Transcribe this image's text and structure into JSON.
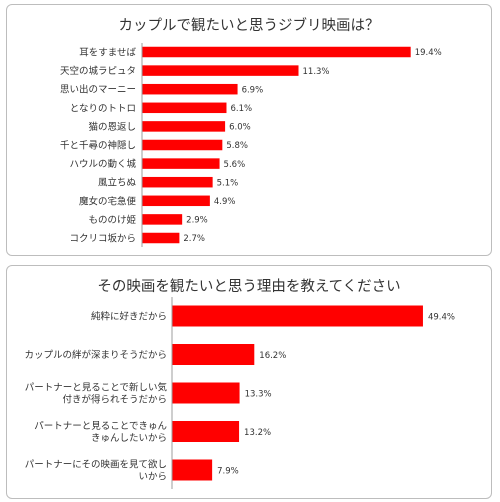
{
  "chart_data": [
    {
      "type": "bar",
      "orientation": "horizontal",
      "title": "カップルで観たいと思うジブリ映画は？",
      "categories": [
        "耳をすませば",
        "天空の城ラピュタ",
        "思い出のマーニー",
        "となりのトトロ",
        "猫の恩返し",
        "千と千尋の神隠し",
        "ハウルの動く城",
        "風立ちぬ",
        "魔女の宅急便",
        "もののけ姫",
        "コクリコ坂から"
      ],
      "values": [
        19.4,
        11.3,
        6.9,
        6.1,
        6.0,
        5.8,
        5.6,
        5.1,
        4.9,
        2.9,
        2.7
      ],
      "value_labels": [
        "19.4%",
        "11.3%",
        "6.9%",
        "6.1%",
        "6.0%",
        "5.8%",
        "5.6%",
        "5.1%",
        "4.9%",
        "2.9%",
        "2.7%"
      ],
      "bar_color": "#ff0000",
      "grid": false,
      "legend": "none"
    },
    {
      "type": "bar",
      "orientation": "horizontal",
      "title": "その映画を観たいと思う理由を教えてください",
      "categories": [
        [
          "純粋に好きだから"
        ],
        [
          "カップルの絆が深まりそうだから"
        ],
        [
          "パートナーと見ることで新しい気",
          "付きが得られそうだから"
        ],
        [
          "パートナーと見ることできゅん",
          "きゅんしたいから"
        ],
        [
          "パートナーにその映画を見て欲し",
          "いから"
        ]
      ],
      "values": [
        49.4,
        16.2,
        13.3,
        13.2,
        7.9
      ],
      "value_labels": [
        "49.4%",
        "16.2%",
        "13.3%",
        "13.2%",
        "7.9%"
      ],
      "bar_color": "#ff0000",
      "grid": false,
      "legend": "none"
    }
  ]
}
